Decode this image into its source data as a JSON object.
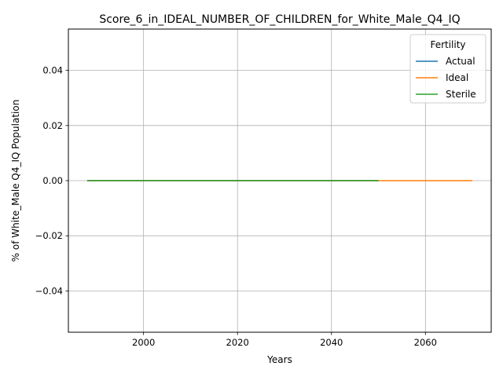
{
  "chart_data": {
    "type": "line",
    "title": "Score_6_in_IDEAL_NUMBER_OF_CHILDREN_for_White_Male_Q4_IQ",
    "xlabel": "Years",
    "ylabel": "% of White_Male Q4_IQ Population",
    "xlim": [
      1984,
      2074
    ],
    "ylim": [
      -0.055,
      0.055
    ],
    "x_ticks": [
      2000,
      2020,
      2040,
      2060
    ],
    "x_tick_labels": [
      "2000",
      "2020",
      "2040",
      "2060"
    ],
    "y_ticks": [
      -0.04,
      -0.02,
      0.0,
      0.02,
      0.04
    ],
    "y_tick_labels": [
      "−0.04",
      "−0.02",
      "0.00",
      "0.02",
      "0.04"
    ],
    "grid": true,
    "legend": {
      "title": "Fertility",
      "placement": "top-right"
    },
    "series": [
      {
        "name": "Actual",
        "color": "#1f77b4",
        "x": [
          1988,
          2050
        ],
        "y": [
          0.0,
          0.0
        ]
      },
      {
        "name": "Ideal",
        "color": "#ff7f0e",
        "x": [
          1988,
          2070
        ],
        "y": [
          0.0,
          0.0
        ]
      },
      {
        "name": "Sterile",
        "color": "#2ca02c",
        "x": [
          1988,
          2050
        ],
        "y": [
          0.0,
          0.0
        ]
      }
    ]
  }
}
